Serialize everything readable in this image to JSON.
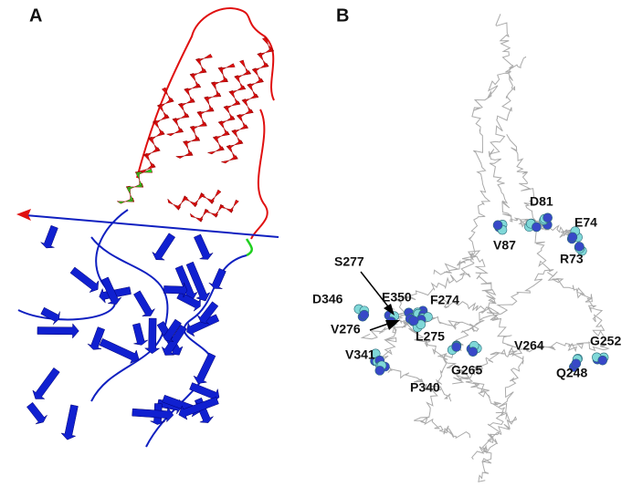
{
  "panels": [
    {
      "label": "A"
    },
    {
      "label": "B",
      "residues": [
        "D81",
        "E74",
        "V87",
        "R73",
        "S277",
        "D346",
        "E350",
        "F274",
        "V276",
        "L275",
        "V264",
        "G252",
        "V341",
        "G265",
        "Q248",
        "P340"
      ]
    }
  ]
}
